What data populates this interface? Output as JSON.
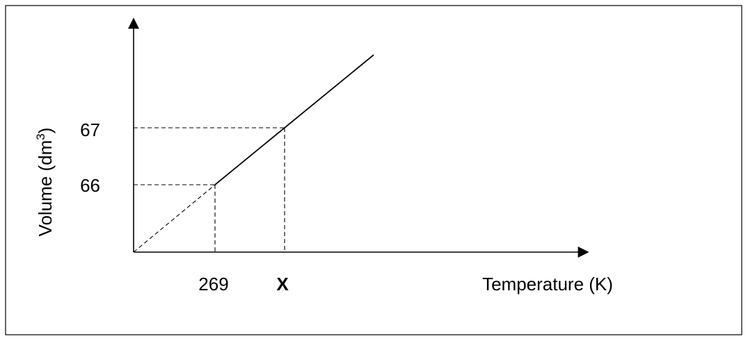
{
  "chart_data": {
    "type": "line",
    "title": "",
    "xlabel": "Temperature (K)",
    "ylabel": {
      "main": "Volume (dm",
      "superscript": "3",
      "close": ")"
    },
    "x_ticks": [
      "269",
      "X"
    ],
    "y_ticks": [
      "66",
      "67"
    ],
    "series": [
      {
        "points": [
          {
            "x": "269",
            "y": 66
          },
          {
            "x": "X",
            "y": 67
          }
        ]
      }
    ],
    "extrapolation_to_origin": true,
    "reference_lines": "dashed lines from each labelled point to both axes",
    "grid": false,
    "legend": "none",
    "colors": {
      "line": "#000000",
      "background": "#ffffff"
    }
  }
}
